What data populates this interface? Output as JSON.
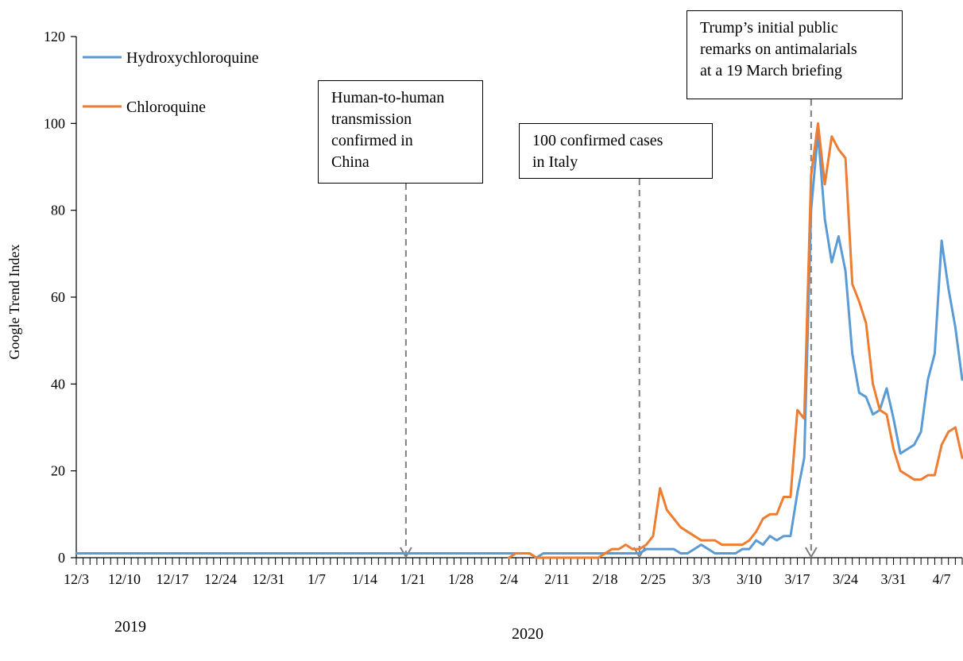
{
  "chart_data": {
    "type": "line",
    "title": "",
    "xlabel": "",
    "ylabel": "Google Trend Index",
    "ylim": [
      0,
      120
    ],
    "yticks": [
      0,
      20,
      40,
      60,
      80,
      100,
      120
    ],
    "x_start": "2019-12-03",
    "x_end": "2020-04-10",
    "x_tick_labels": [
      "12/3",
      "12/10",
      "12/17",
      "12/24",
      "12/31",
      "1/7",
      "1/14",
      "1/21",
      "1/28",
      "2/4",
      "2/11",
      "2/18",
      "2/25",
      "3/3",
      "3/10",
      "3/17",
      "3/24",
      "3/31",
      "4/7"
    ],
    "year_labels": [
      "2019",
      "2020"
    ],
    "grid": false,
    "legend_position": "top-left",
    "series": [
      {
        "name": "Hydroxychloroquine",
        "color": "#5b9bd5",
        "points": [
          [
            "2019-12-03",
            1
          ],
          [
            "2020-02-07",
            1
          ],
          [
            "2020-02-08",
            0
          ],
          [
            "2020-02-09",
            1
          ],
          [
            "2020-02-22",
            1
          ],
          [
            "2020-02-23",
            1
          ],
          [
            "2020-02-24",
            2
          ],
          [
            "2020-02-28",
            2
          ],
          [
            "2020-02-29",
            1
          ],
          [
            "2020-03-01",
            1
          ],
          [
            "2020-03-03",
            3
          ],
          [
            "2020-03-05",
            1
          ],
          [
            "2020-03-08",
            1
          ],
          [
            "2020-03-09",
            2
          ],
          [
            "2020-03-10",
            2
          ],
          [
            "2020-03-11",
            4
          ],
          [
            "2020-03-12",
            3
          ],
          [
            "2020-03-13",
            5
          ],
          [
            "2020-03-14",
            4
          ],
          [
            "2020-03-15",
            5
          ],
          [
            "2020-03-16",
            5
          ],
          [
            "2020-03-17",
            15
          ],
          [
            "2020-03-18",
            23
          ],
          [
            "2020-03-19",
            80
          ],
          [
            "2020-03-20",
            98
          ],
          [
            "2020-03-21",
            78
          ],
          [
            "2020-03-22",
            68
          ],
          [
            "2020-03-23",
            74
          ],
          [
            "2020-03-24",
            66
          ],
          [
            "2020-03-25",
            47
          ],
          [
            "2020-03-26",
            38
          ],
          [
            "2020-03-27",
            37
          ],
          [
            "2020-03-28",
            33
          ],
          [
            "2020-03-29",
            34
          ],
          [
            "2020-03-30",
            39
          ],
          [
            "2020-03-31",
            32
          ],
          [
            "2020-04-01",
            24
          ],
          [
            "2020-04-03",
            26
          ],
          [
            "2020-04-04",
            29
          ],
          [
            "2020-04-05",
            41
          ],
          [
            "2020-04-06",
            47
          ],
          [
            "2020-04-07",
            73
          ],
          [
            "2020-04-08",
            62
          ],
          [
            "2020-04-09",
            53
          ],
          [
            "2020-04-10",
            41
          ]
        ]
      },
      {
        "name": "Chloroquine",
        "color": "#ed7d31",
        "points": [
          [
            "2020-02-04",
            0
          ],
          [
            "2020-02-05",
            1
          ],
          [
            "2020-02-07",
            1
          ],
          [
            "2020-02-08",
            0
          ],
          [
            "2020-02-17",
            0
          ],
          [
            "2020-02-19",
            2
          ],
          [
            "2020-02-20",
            2
          ],
          [
            "2020-02-21",
            3
          ],
          [
            "2020-02-22",
            2
          ],
          [
            "2020-02-23",
            2
          ],
          [
            "2020-02-24",
            3
          ],
          [
            "2020-02-25",
            5
          ],
          [
            "2020-02-26",
            16
          ],
          [
            "2020-02-27",
            11
          ],
          [
            "2020-02-28",
            9
          ],
          [
            "2020-02-29",
            7
          ],
          [
            "2020-03-01",
            6
          ],
          [
            "2020-03-02",
            5
          ],
          [
            "2020-03-03",
            4
          ],
          [
            "2020-03-04",
            4
          ],
          [
            "2020-03-05",
            4
          ],
          [
            "2020-03-06",
            3
          ],
          [
            "2020-03-08",
            3
          ],
          [
            "2020-03-09",
            3
          ],
          [
            "2020-03-10",
            4
          ],
          [
            "2020-03-11",
            6
          ],
          [
            "2020-03-12",
            9
          ],
          [
            "2020-03-13",
            10
          ],
          [
            "2020-03-14",
            10
          ],
          [
            "2020-03-15",
            14
          ],
          [
            "2020-03-16",
            14
          ],
          [
            "2020-03-17",
            34
          ],
          [
            "2020-03-18",
            32
          ],
          [
            "2020-03-19",
            88
          ],
          [
            "2020-03-20",
            100
          ],
          [
            "2020-03-21",
            86
          ],
          [
            "2020-03-22",
            97
          ],
          [
            "2020-03-23",
            94
          ],
          [
            "2020-03-24",
            92
          ],
          [
            "2020-03-25",
            63
          ],
          [
            "2020-03-26",
            59
          ],
          [
            "2020-03-27",
            54
          ],
          [
            "2020-03-28",
            40
          ],
          [
            "2020-03-29",
            34
          ],
          [
            "2020-03-30",
            33
          ],
          [
            "2020-03-31",
            25
          ],
          [
            "2020-04-01",
            20
          ],
          [
            "2020-04-02",
            19
          ],
          [
            "2020-04-03",
            18
          ],
          [
            "2020-04-04",
            18
          ],
          [
            "2020-04-05",
            19
          ],
          [
            "2020-04-06",
            19
          ],
          [
            "2020-04-07",
            26
          ],
          [
            "2020-04-08",
            29
          ],
          [
            "2020-04-09",
            30
          ],
          [
            "2020-04-10",
            23
          ]
        ]
      }
    ],
    "annotations": [
      {
        "date": "2020-01-20",
        "lines": [
          "Human-to-human",
          "transmission",
          "confirmed in",
          "China"
        ]
      },
      {
        "date": "2020-02-23",
        "lines": [
          "100 confirmed cases",
          "in Italy"
        ]
      },
      {
        "date": "2020-03-19",
        "lines": [
          "Trump’s initial public",
          "remarks on antimalarials",
          "at a 19 March briefing"
        ]
      }
    ]
  }
}
